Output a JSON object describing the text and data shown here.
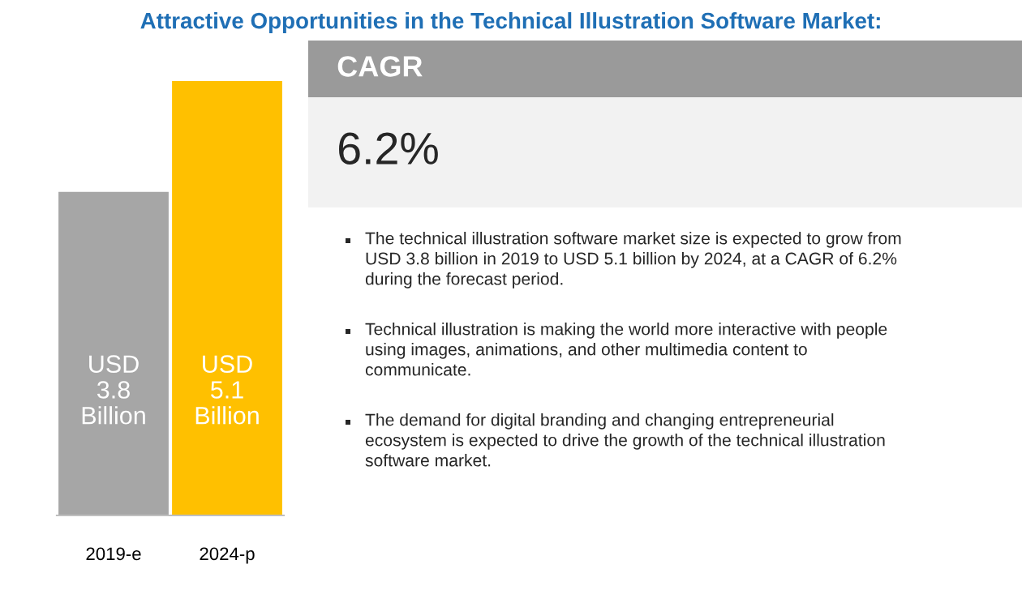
{
  "chart_data": [
    {
      "type": "bar",
      "title": "Attractive Opportunities in the Technical Illustration Software Market:",
      "categories": [
        "2019-e",
        "2024-p"
      ],
      "values": [
        3.8,
        5.1
      ],
      "colors": [
        "#a6a6a6",
        "#ffc000"
      ],
      "value_labels": [
        "USD\n3.8\nBillion",
        "USD\n5.1\nBillion"
      ],
      "grid": false,
      "legend": false,
      "tick_labels": "x"
    },
    {
      "type": "other",
      "title": "CAGR",
      "subtitle": "6.2%",
      "annotations": [
        "The technical illustration software market size is expected to grow from\nUSD 3.8 billion in 2019 to USD 5.1 billion by 2024, at a CAGR of 6.2%\nduring the forecast period.",
        "Technical illustration is making the world more interactive with people\nusing images, animations, and other multimedia content to\ncommunicate.",
        "The demand for digital branding and changing entrepreneurial\necosystem is expected to drive the growth of the technical illustration\nsoftware market."
      ]
    }
  ]
}
